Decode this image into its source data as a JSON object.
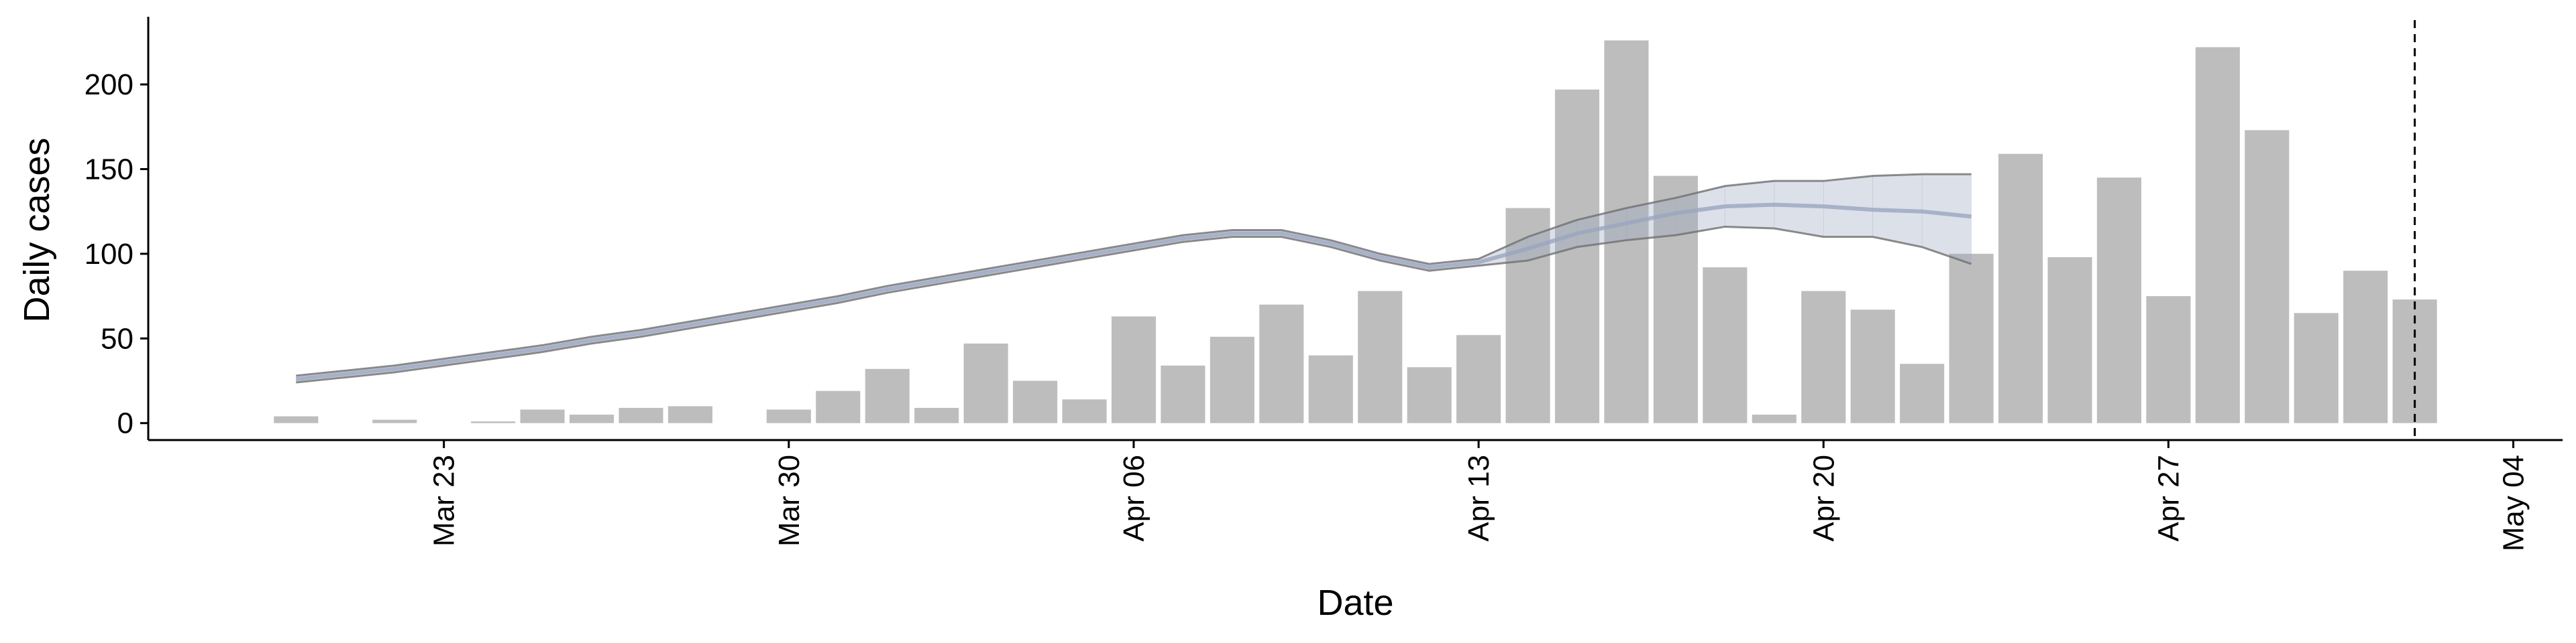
{
  "chart_data": {
    "type": "bar",
    "xlabel": "Date",
    "ylabel": "Daily cases",
    "x": [
      "Mar 20",
      "Mar 21",
      "Mar 22",
      "Mar 23",
      "Mar 24",
      "Mar 25",
      "Mar 26",
      "Mar 27",
      "Mar 28",
      "Mar 29",
      "Mar 30",
      "Mar 31",
      "Apr 01",
      "Apr 02",
      "Apr 03",
      "Apr 04",
      "Apr 05",
      "Apr 06",
      "Apr 07",
      "Apr 08",
      "Apr 09",
      "Apr 10",
      "Apr 11",
      "Apr 12",
      "Apr 13",
      "Apr 14",
      "Apr 15",
      "Apr 16",
      "Apr 17",
      "Apr 18",
      "Apr 19",
      "Apr 20",
      "Apr 21",
      "Apr 22",
      "Apr 23",
      "Apr 24",
      "Apr 25",
      "Apr 26",
      "Apr 27",
      "Apr 28",
      "Apr 29",
      "Apr 30",
      "May 01",
      "May 02"
    ],
    "values": [
      4,
      0,
      2,
      0,
      1,
      8,
      5,
      9,
      10,
      0,
      8,
      19,
      32,
      9,
      47,
      25,
      14,
      63,
      34,
      51,
      70,
      40,
      78,
      33,
      52,
      127,
      197,
      226,
      146,
      92,
      5,
      78,
      67,
      35,
      100,
      159,
      98,
      145,
      75,
      222,
      173,
      65,
      90,
      73
    ],
    "color": "#bdbdbd",
    "estimate": {
      "x": [
        "Mar 20",
        "Mar 21",
        "Mar 22",
        "Mar 23",
        "Mar 24",
        "Mar 25",
        "Mar 26",
        "Mar 27",
        "Mar 28",
        "Mar 29",
        "Mar 30",
        "Mar 31",
        "Apr 01",
        "Apr 02",
        "Apr 03",
        "Apr 04",
        "Apr 05",
        "Apr 06",
        "Apr 07",
        "Apr 08",
        "Apr 09",
        "Apr 10",
        "Apr 11",
        "Apr 12",
        "Apr 13",
        "Apr 14",
        "Apr 15",
        "Apr 16",
        "Apr 17",
        "Apr 18",
        "Apr 19",
        "Apr 20",
        "Apr 21",
        "Apr 22",
        "Apr 23"
      ],
      "median": [
        26,
        29,
        32,
        36,
        40,
        44,
        49,
        53,
        58,
        63,
        68,
        73,
        79,
        84,
        89,
        94,
        99,
        104,
        109,
        112,
        112,
        106,
        98,
        92,
        95,
        103,
        112,
        118,
        124,
        128,
        129,
        128,
        126,
        125,
        122
      ],
      "lower": [
        24,
        27,
        30,
        34,
        38,
        42,
        47,
        51,
        56,
        61,
        66,
        71,
        77,
        82,
        87,
        92,
        97,
        102,
        107,
        110,
        110,
        104,
        96,
        90,
        93,
        96,
        104,
        108,
        111,
        116,
        115,
        110,
        110,
        104,
        94
      ],
      "upper": [
        28,
        31,
        34,
        38,
        42,
        46,
        51,
        55,
        60,
        65,
        70,
        75,
        81,
        86,
        91,
        96,
        101,
        106,
        111,
        114,
        114,
        108,
        100,
        94,
        97,
        110,
        120,
        127,
        133,
        140,
        143,
        143,
        146,
        147,
        147
      ],
      "color": "#9aa6c0",
      "line_color": "#707070"
    },
    "vline": "May 02",
    "xlim": [
      "Mar 17",
      "May 05"
    ],
    "xticks": [
      "Mar 23",
      "Mar 30",
      "Apr 06",
      "Apr 13",
      "Apr 20",
      "Apr 27",
      "May 04"
    ],
    "ylim": [
      -10,
      238
    ],
    "yticks": [
      0,
      50,
      100,
      150,
      200
    ]
  }
}
